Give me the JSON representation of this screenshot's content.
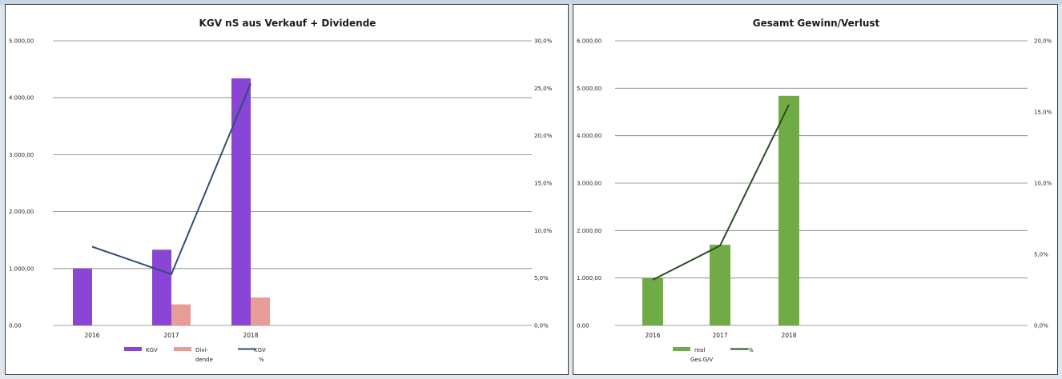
{
  "colors": {
    "kgv_bar": "#8a45d7",
    "dividende_bar": "#e89c98",
    "kgv_line": "#2e4f74",
    "real_bar": "#70ab46",
    "pct_line": "#2b4d24"
  },
  "chart_data": [
    {
      "type": "bar",
      "title": "KGV nS aus Verkauf + Dividende",
      "categories": [
        "2016",
        "2017",
        "2018"
      ],
      "ylim": [
        0,
        5000
      ],
      "yticks": [
        "0,00",
        "1.000,00",
        "2.000,00",
        "3.000,00",
        "4.000,00",
        "5.000,00"
      ],
      "y2lim": [
        0,
        30
      ],
      "y2ticks": [
        "0,0%",
        "5,0%",
        "10,0%",
        "15,0%",
        "20,0%",
        "25,0%",
        "30,0%"
      ],
      "grid": true,
      "legend_position": "bottom-left",
      "series": [
        {
          "name": "KGV",
          "kind": "bar",
          "axis": "left",
          "values": [
            1000,
            1330,
            4340
          ]
        },
        {
          "name": "Divi-dende",
          "kind": "bar",
          "axis": "left",
          "values": [
            0,
            370,
            490
          ]
        },
        {
          "name": "KGV %",
          "kind": "line",
          "axis": "right",
          "values": [
            8.3,
            5.4,
            25.5
          ]
        }
      ],
      "legend": [
        {
          "lines": [
            "KGV"
          ]
        },
        {
          "lines": [
            "Divi-",
            "dende"
          ]
        },
        {
          "lines": [
            "KGV",
            "%"
          ]
        }
      ]
    },
    {
      "type": "bar",
      "title": "Gesamt Gewinn/Verlust",
      "categories": [
        "2016",
        "2017",
        "2018"
      ],
      "ylim": [
        0,
        6000
      ],
      "yticks": [
        "0,00",
        "1.000,00",
        "2.000,00",
        "3.000,00",
        "4.000,00",
        "5.000,00",
        "6.000,00"
      ],
      "y2lim": [
        0,
        20
      ],
      "y2ticks": [
        "0,0%",
        "5,0%",
        "10,0%",
        "15,0%",
        "20,0%"
      ],
      "grid": true,
      "legend_position": "bottom-left",
      "series": [
        {
          "name": "real Ges.G/V",
          "kind": "bar",
          "axis": "left",
          "values": [
            1000,
            1700,
            4840
          ]
        },
        {
          "name": "%",
          "kind": "line",
          "axis": "right",
          "values": [
            3.2,
            5.6,
            15.5
          ]
        }
      ],
      "legend": [
        {
          "lines": [
            "real",
            "Ges.G/V"
          ]
        },
        {
          "lines": [
            "%"
          ]
        }
      ]
    }
  ]
}
